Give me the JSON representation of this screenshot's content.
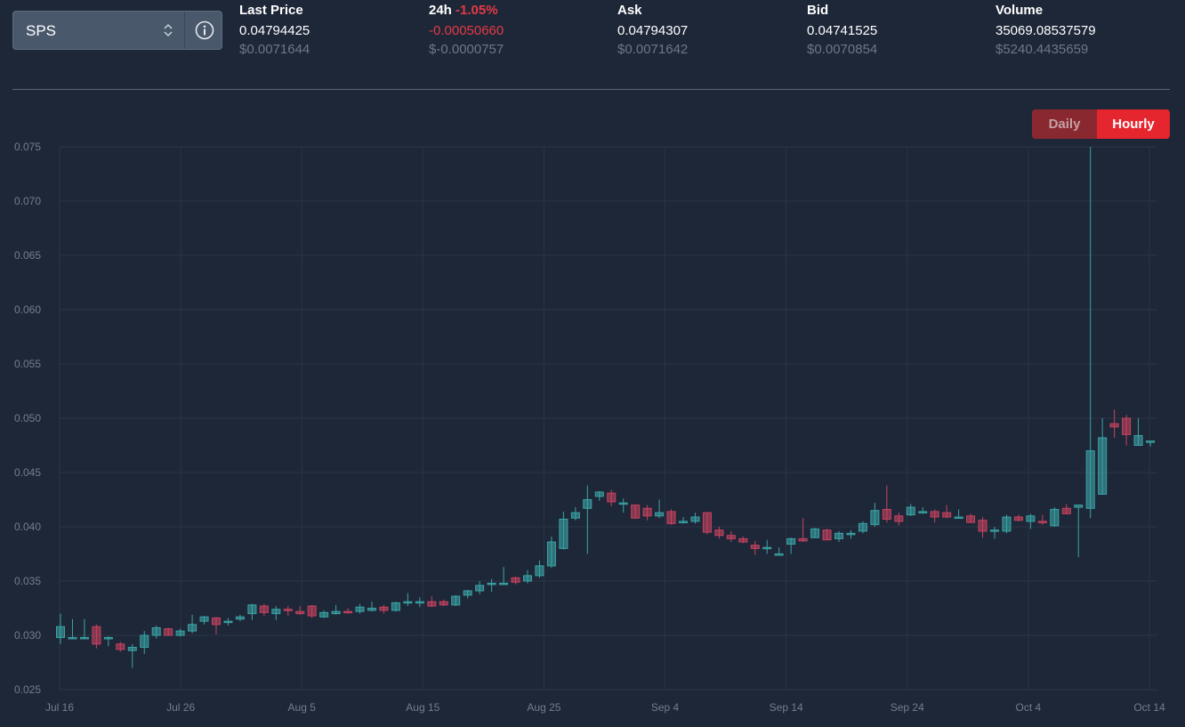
{
  "selector": {
    "symbol": "SPS",
    "chevron_icon": "updown-chevron-icon",
    "info_icon": "info-circle-icon"
  },
  "stats": [
    {
      "label": "Last Price",
      "value": "0.04794425",
      "usd": "$0.0071644"
    },
    {
      "label": "24h",
      "label_change": "-1.05%",
      "value": "-0.00050660",
      "usd": "$-0.0000757",
      "value_color": "#e53945"
    },
    {
      "label": "Ask",
      "value": "0.04794307",
      "usd": "$0.0071642"
    },
    {
      "label": "Bid",
      "value": "0.04741525",
      "usd": "$0.0070854"
    },
    {
      "label": "Volume",
      "value": "35069.08537579",
      "usd": "$5240.4435659"
    }
  ],
  "toggle": {
    "daily": "Daily",
    "hourly": "Hourly",
    "active": "hourly"
  },
  "chart_data": {
    "type": "candlestick",
    "y_ticks": [
      "0.075",
      "0.070",
      "0.065",
      "0.060",
      "0.055",
      "0.050",
      "0.045",
      "0.040",
      "0.035",
      "0.030",
      "0.025"
    ],
    "ylim": [
      0.025,
      0.075
    ],
    "x_ticks": [
      "Jul 16",
      "Jul 26",
      "Aug 5",
      "Aug 15",
      "Aug 25",
      "Sep 4",
      "Sep 14",
      "Sep 24",
      "Oct 4",
      "Oct 14"
    ],
    "grid": true,
    "colors": {
      "up": "#3aa4a5",
      "down": "#c7435f",
      "grid": "#2a3446"
    },
    "candles": [
      {
        "open": 0.0298,
        "high": 0.032,
        "low": 0.0292,
        "close": 0.0308
      },
      {
        "open": 0.0298,
        "high": 0.0315,
        "low": 0.0297,
        "close": 0.0298
      },
      {
        "open": 0.0298,
        "high": 0.0315,
        "low": 0.0297,
        "close": 0.0298
      },
      {
        "open": 0.0308,
        "high": 0.031,
        "low": 0.0288,
        "close": 0.0292
      },
      {
        "open": 0.0298,
        "high": 0.0299,
        "low": 0.029,
        "close": 0.0298
      },
      {
        "open": 0.0292,
        "high": 0.0294,
        "low": 0.0285,
        "close": 0.0287
      },
      {
        "open": 0.0286,
        "high": 0.0292,
        "low": 0.027,
        "close": 0.0289
      },
      {
        "open": 0.0289,
        "high": 0.0304,
        "low": 0.0283,
        "close": 0.03
      },
      {
        "open": 0.03,
        "high": 0.0309,
        "low": 0.0297,
        "close": 0.0307
      },
      {
        "open": 0.0306,
        "high": 0.0307,
        "low": 0.03,
        "close": 0.03
      },
      {
        "open": 0.03,
        "high": 0.0306,
        "low": 0.0299,
        "close": 0.0304
      },
      {
        "open": 0.0304,
        "high": 0.0319,
        "low": 0.0302,
        "close": 0.031
      },
      {
        "open": 0.0313,
        "high": 0.0318,
        "low": 0.031,
        "close": 0.0317
      },
      {
        "open": 0.0316,
        "high": 0.0317,
        "low": 0.0301,
        "close": 0.031
      },
      {
        "open": 0.0313,
        "high": 0.0316,
        "low": 0.0309,
        "close": 0.0313
      },
      {
        "open": 0.0315,
        "high": 0.0319,
        "low": 0.0313,
        "close": 0.0317
      },
      {
        "open": 0.032,
        "high": 0.0329,
        "low": 0.0314,
        "close": 0.0328
      },
      {
        "open": 0.0327,
        "high": 0.0329,
        "low": 0.0318,
        "close": 0.0321
      },
      {
        "open": 0.032,
        "high": 0.0327,
        "low": 0.0314,
        "close": 0.0324
      },
      {
        "open": 0.0324,
        "high": 0.0327,
        "low": 0.0318,
        "close": 0.0323
      },
      {
        "open": 0.0322,
        "high": 0.0327,
        "low": 0.0319,
        "close": 0.032
      },
      {
        "open": 0.0327,
        "high": 0.0328,
        "low": 0.0316,
        "close": 0.0318
      },
      {
        "open": 0.0317,
        "high": 0.0323,
        "low": 0.0316,
        "close": 0.0321
      },
      {
        "open": 0.032,
        "high": 0.0328,
        "low": 0.0319,
        "close": 0.0322
      },
      {
        "open": 0.0322,
        "high": 0.0325,
        "low": 0.032,
        "close": 0.0321
      },
      {
        "open": 0.0322,
        "high": 0.0329,
        "low": 0.032,
        "close": 0.0326
      },
      {
        "open": 0.0323,
        "high": 0.0331,
        "low": 0.0322,
        "close": 0.0325
      },
      {
        "open": 0.0326,
        "high": 0.0328,
        "low": 0.032,
        "close": 0.0323
      },
      {
        "open": 0.0323,
        "high": 0.0331,
        "low": 0.0322,
        "close": 0.033
      },
      {
        "open": 0.033,
        "high": 0.0339,
        "low": 0.0327,
        "close": 0.0331
      },
      {
        "open": 0.0331,
        "high": 0.0335,
        "low": 0.0326,
        "close": 0.0331
      },
      {
        "open": 0.0331,
        "high": 0.0336,
        "low": 0.0326,
        "close": 0.0327
      },
      {
        "open": 0.0331,
        "high": 0.0333,
        "low": 0.0327,
        "close": 0.0328
      },
      {
        "open": 0.0328,
        "high": 0.0337,
        "low": 0.0327,
        "close": 0.0336
      },
      {
        "open": 0.0337,
        "high": 0.0342,
        "low": 0.0334,
        "close": 0.0341
      },
      {
        "open": 0.0341,
        "high": 0.035,
        "low": 0.0338,
        "close": 0.0346
      },
      {
        "open": 0.0347,
        "high": 0.0352,
        "low": 0.034,
        "close": 0.0348
      },
      {
        "open": 0.0348,
        "high": 0.0363,
        "low": 0.0347,
        "close": 0.0348
      },
      {
        "open": 0.0353,
        "high": 0.0354,
        "low": 0.0347,
        "close": 0.0349
      },
      {
        "open": 0.035,
        "high": 0.036,
        "low": 0.0348,
        "close": 0.0355
      },
      {
        "open": 0.0355,
        "high": 0.0369,
        "low": 0.0353,
        "close": 0.0364
      },
      {
        "open": 0.0364,
        "high": 0.0391,
        "low": 0.0362,
        "close": 0.0386
      },
      {
        "open": 0.038,
        "high": 0.0414,
        "low": 0.0379,
        "close": 0.0407
      },
      {
        "open": 0.0408,
        "high": 0.0418,
        "low": 0.0406,
        "close": 0.0413
      },
      {
        "open": 0.0417,
        "high": 0.0438,
        "low": 0.0375,
        "close": 0.0425
      },
      {
        "open": 0.0428,
        "high": 0.0433,
        "low": 0.0424,
        "close": 0.0432
      },
      {
        "open": 0.0431,
        "high": 0.0434,
        "low": 0.0419,
        "close": 0.0423
      },
      {
        "open": 0.0422,
        "high": 0.0426,
        "low": 0.0413,
        "close": 0.0422
      },
      {
        "open": 0.042,
        "high": 0.042,
        "low": 0.0408,
        "close": 0.0408
      },
      {
        "open": 0.0417,
        "high": 0.042,
        "low": 0.0406,
        "close": 0.041
      },
      {
        "open": 0.041,
        "high": 0.0425,
        "low": 0.0408,
        "close": 0.0413
      },
      {
        "open": 0.0414,
        "high": 0.0416,
        "low": 0.0402,
        "close": 0.0403
      },
      {
        "open": 0.0404,
        "high": 0.0409,
        "low": 0.0403,
        "close": 0.0405
      },
      {
        "open": 0.0405,
        "high": 0.0413,
        "low": 0.0403,
        "close": 0.0409
      },
      {
        "open": 0.0413,
        "high": 0.0413,
        "low": 0.0393,
        "close": 0.0395
      },
      {
        "open": 0.0397,
        "high": 0.04,
        "low": 0.0389,
        "close": 0.0392
      },
      {
        "open": 0.0392,
        "high": 0.0396,
        "low": 0.0386,
        "close": 0.0389
      },
      {
        "open": 0.0389,
        "high": 0.0391,
        "low": 0.0385,
        "close": 0.0386
      },
      {
        "open": 0.0383,
        "high": 0.0387,
        "low": 0.0374,
        "close": 0.038
      },
      {
        "open": 0.0381,
        "high": 0.0388,
        "low": 0.0375,
        "close": 0.0381
      },
      {
        "open": 0.0375,
        "high": 0.0381,
        "low": 0.0375,
        "close": 0.0375
      },
      {
        "open": 0.0384,
        "high": 0.039,
        "low": 0.0375,
        "close": 0.0389
      },
      {
        "open": 0.0389,
        "high": 0.0408,
        "low": 0.0386,
        "close": 0.0387
      },
      {
        "open": 0.039,
        "high": 0.0399,
        "low": 0.039,
        "close": 0.0398
      },
      {
        "open": 0.0397,
        "high": 0.0398,
        "low": 0.0388,
        "close": 0.0388
      },
      {
        "open": 0.0389,
        "high": 0.0396,
        "low": 0.0386,
        "close": 0.0394
      },
      {
        "open": 0.0393,
        "high": 0.0397,
        "low": 0.0389,
        "close": 0.0394
      },
      {
        "open": 0.0396,
        "high": 0.0405,
        "low": 0.0394,
        "close": 0.0403
      },
      {
        "open": 0.0402,
        "high": 0.0422,
        "low": 0.04,
        "close": 0.0415
      },
      {
        "open": 0.0416,
        "high": 0.0438,
        "low": 0.0404,
        "close": 0.0407
      },
      {
        "open": 0.041,
        "high": 0.0413,
        "low": 0.0401,
        "close": 0.0405
      },
      {
        "open": 0.0411,
        "high": 0.0421,
        "low": 0.041,
        "close": 0.0418
      },
      {
        "open": 0.0414,
        "high": 0.0418,
        "low": 0.0412,
        "close": 0.0414
      },
      {
        "open": 0.0414,
        "high": 0.0416,
        "low": 0.0404,
        "close": 0.0409
      },
      {
        "open": 0.0413,
        "high": 0.042,
        "low": 0.0408,
        "close": 0.0409
      },
      {
        "open": 0.0409,
        "high": 0.0416,
        "low": 0.0409,
        "close": 0.0409
      },
      {
        "open": 0.041,
        "high": 0.0412,
        "low": 0.0404,
        "close": 0.0404
      },
      {
        "open": 0.0406,
        "high": 0.0409,
        "low": 0.039,
        "close": 0.0396
      },
      {
        "open": 0.0396,
        "high": 0.04,
        "low": 0.0389,
        "close": 0.0397
      },
      {
        "open": 0.0396,
        "high": 0.0411,
        "low": 0.0394,
        "close": 0.0409
      },
      {
        "open": 0.0409,
        "high": 0.0411,
        "low": 0.0405,
        "close": 0.0406
      },
      {
        "open": 0.0405,
        "high": 0.0412,
        "low": 0.0398,
        "close": 0.041
      },
      {
        "open": 0.0405,
        "high": 0.0411,
        "low": 0.0402,
        "close": 0.0404
      },
      {
        "open": 0.0401,
        "high": 0.0418,
        "low": 0.04,
        "close": 0.0416
      },
      {
        "open": 0.0417,
        "high": 0.0421,
        "low": 0.0412,
        "close": 0.0412
      },
      {
        "open": 0.0418,
        "high": 0.0419,
        "low": 0.0372,
        "close": 0.042
      },
      {
        "open": 0.0417,
        "high": 0.075,
        "low": 0.0408,
        "close": 0.047
      },
      {
        "open": 0.043,
        "high": 0.05,
        "low": 0.043,
        "close": 0.0482
      },
      {
        "open": 0.0495,
        "high": 0.0508,
        "low": 0.0482,
        "close": 0.0492
      },
      {
        "open": 0.05,
        "high": 0.0503,
        "low": 0.0475,
        "close": 0.0485
      },
      {
        "open": 0.0475,
        "high": 0.05,
        "low": 0.0475,
        "close": 0.0484
      },
      {
        "open": 0.0479,
        "high": 0.0479,
        "low": 0.0474,
        "close": 0.0479
      }
    ]
  }
}
